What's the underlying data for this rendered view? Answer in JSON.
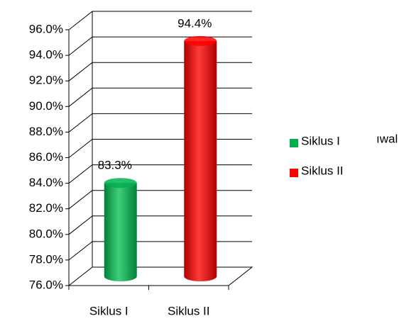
{
  "chart_data": {
    "type": "bar3d",
    "categories": [
      "Siklus I",
      "Siklus II"
    ],
    "series": [
      {
        "name": "Siklus I",
        "color": "#00b050",
        "values": [
          83.3,
          null
        ],
        "value_labels": [
          "83.3%",
          null
        ]
      },
      {
        "name": "Siklus II",
        "color": "#ff0000",
        "values": [
          null,
          94.4
        ],
        "value_labels": [
          null,
          "94.4%"
        ]
      }
    ],
    "ylim": [
      76,
      96
    ],
    "yticks": [
      {
        "value": 76,
        "label": "76.0%"
      },
      {
        "value": 78,
        "label": "78.0%"
      },
      {
        "value": 80,
        "label": "80.0%"
      },
      {
        "value": 82,
        "label": "82.0%"
      },
      {
        "value": 84,
        "label": "84.0%"
      },
      {
        "value": 86,
        "label": "86.0%"
      },
      {
        "value": 88,
        "label": "88.0%"
      },
      {
        "value": 90,
        "label": "90.0%"
      },
      {
        "value": 92,
        "label": "92.0%"
      },
      {
        "value": 94,
        "label": "94.0%"
      },
      {
        "value": 96,
        "label": "96.0%"
      }
    ],
    "grid": true,
    "legend": "right",
    "annotation": "ıwal"
  }
}
